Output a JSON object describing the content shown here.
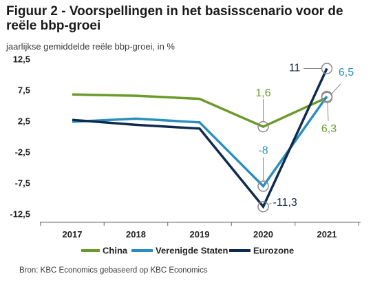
{
  "header": {
    "title": "Figuur 2 - Voorspellingen in het basisscenario voor de reële bbp-groei",
    "subtitle": "jaarlijkse gemiddelde reële bbp-groei, in %"
  },
  "footer": {
    "source": "Bron: KBC Economics gebaseerd op KBC Economics"
  },
  "chart_data": {
    "type": "line",
    "title": "Figuur 2 - Voorspellingen in het basisscenario voor de reële bbp-groei",
    "subtitle": "jaarlijkse gemiddelde reële bbp-groei, in %",
    "x": [
      "2017",
      "2018",
      "2019",
      "2020",
      "2021"
    ],
    "ylim": [
      -12.5,
      12.5
    ],
    "yticks": [
      -12.5,
      -7.5,
      -2.5,
      2.5,
      7.5,
      12.5
    ],
    "ytick_labels": [
      "-12,5",
      "-7,5",
      "-2,5",
      "2,5",
      "7,5",
      "12,5"
    ],
    "grid": false,
    "legend_position": "bottom",
    "series": [
      {
        "name": "China",
        "color": "#6a9a2a",
        "values": [
          6.8,
          6.6,
          6.1,
          1.6,
          6.3
        ]
      },
      {
        "name": "Verenigde Staten",
        "color": "#2a8fbd",
        "values": [
          2.4,
          2.9,
          2.3,
          -8,
          6.5
        ]
      },
      {
        "name": "Eurozone",
        "color": "#0f2a4f",
        "values": [
          2.7,
          1.9,
          1.3,
          -11.3,
          11
        ]
      }
    ],
    "annotations": [
      {
        "series": 0,
        "index": 3,
        "text": "1,6"
      },
      {
        "series": 0,
        "index": 4,
        "text": "6,3"
      },
      {
        "series": 1,
        "index": 3,
        "text": "-8"
      },
      {
        "series": 1,
        "index": 4,
        "text": "6,5"
      },
      {
        "series": 2,
        "index": 3,
        "text": "-11,3"
      },
      {
        "series": 2,
        "index": 4,
        "text": "11"
      }
    ]
  }
}
